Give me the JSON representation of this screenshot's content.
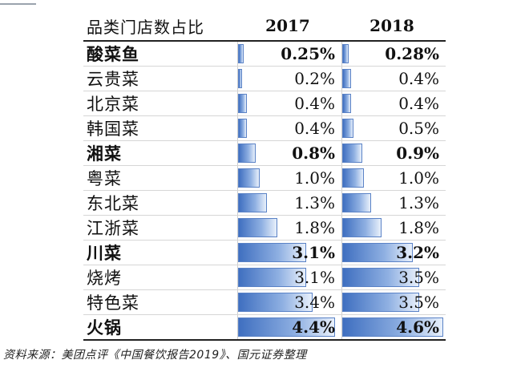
{
  "chart_data": {
    "type": "table",
    "header": {
      "label": "品类门店数占比",
      "col2017": "2017",
      "col2018": "2018"
    },
    "max_percent": 4.6,
    "rows": [
      {
        "name": "酸菜鱼",
        "v2017": 0.25,
        "v2018": 0.28,
        "t2017": "0.25%",
        "t2018": "0.28%",
        "bold": true
      },
      {
        "name": "云贵菜",
        "v2017": 0.2,
        "v2018": 0.4,
        "t2017": "0.2%",
        "t2018": "0.4%",
        "bold": false
      },
      {
        "name": "北京菜",
        "v2017": 0.4,
        "v2018": 0.4,
        "t2017": "0.4%",
        "t2018": "0.4%",
        "bold": false
      },
      {
        "name": "韩国菜",
        "v2017": 0.4,
        "v2018": 0.5,
        "t2017": "0.4%",
        "t2018": "0.5%",
        "bold": false
      },
      {
        "name": "湘菜",
        "v2017": 0.8,
        "v2018": 0.9,
        "t2017": "0.8%",
        "t2018": "0.9%",
        "bold": true
      },
      {
        "name": "粤菜",
        "v2017": 1.0,
        "v2018": 1.0,
        "t2017": "1.0%",
        "t2018": "1.0%",
        "bold": false
      },
      {
        "name": "东北菜",
        "v2017": 1.3,
        "v2018": 1.3,
        "t2017": "1.3%",
        "t2018": "1.3%",
        "bold": false
      },
      {
        "name": "江浙菜",
        "v2017": 1.8,
        "v2018": 1.8,
        "t2017": "1.8%",
        "t2018": "1.8%",
        "bold": false
      },
      {
        "name": "川菜",
        "v2017": 3.1,
        "v2018": 3.2,
        "t2017": "3.1%",
        "t2018": "3.2%",
        "bold": true
      },
      {
        "name": "烧烤",
        "v2017": 3.1,
        "v2018": 3.5,
        "t2017": "3.1%",
        "t2018": "3.5%",
        "bold": false
      },
      {
        "name": "特色菜",
        "v2017": 3.4,
        "v2018": 3.5,
        "t2017": "3.4%",
        "t2018": "3.5%",
        "bold": false
      },
      {
        "name": "火锅",
        "v2017": 4.4,
        "v2018": 4.6,
        "t2017": "4.4%",
        "t2018": "4.6%",
        "bold": true
      }
    ],
    "source": "资料来源：美团点评《中国餐饮报告2019》、国元证券整理",
    "bar_color": "#4a7cc7"
  }
}
